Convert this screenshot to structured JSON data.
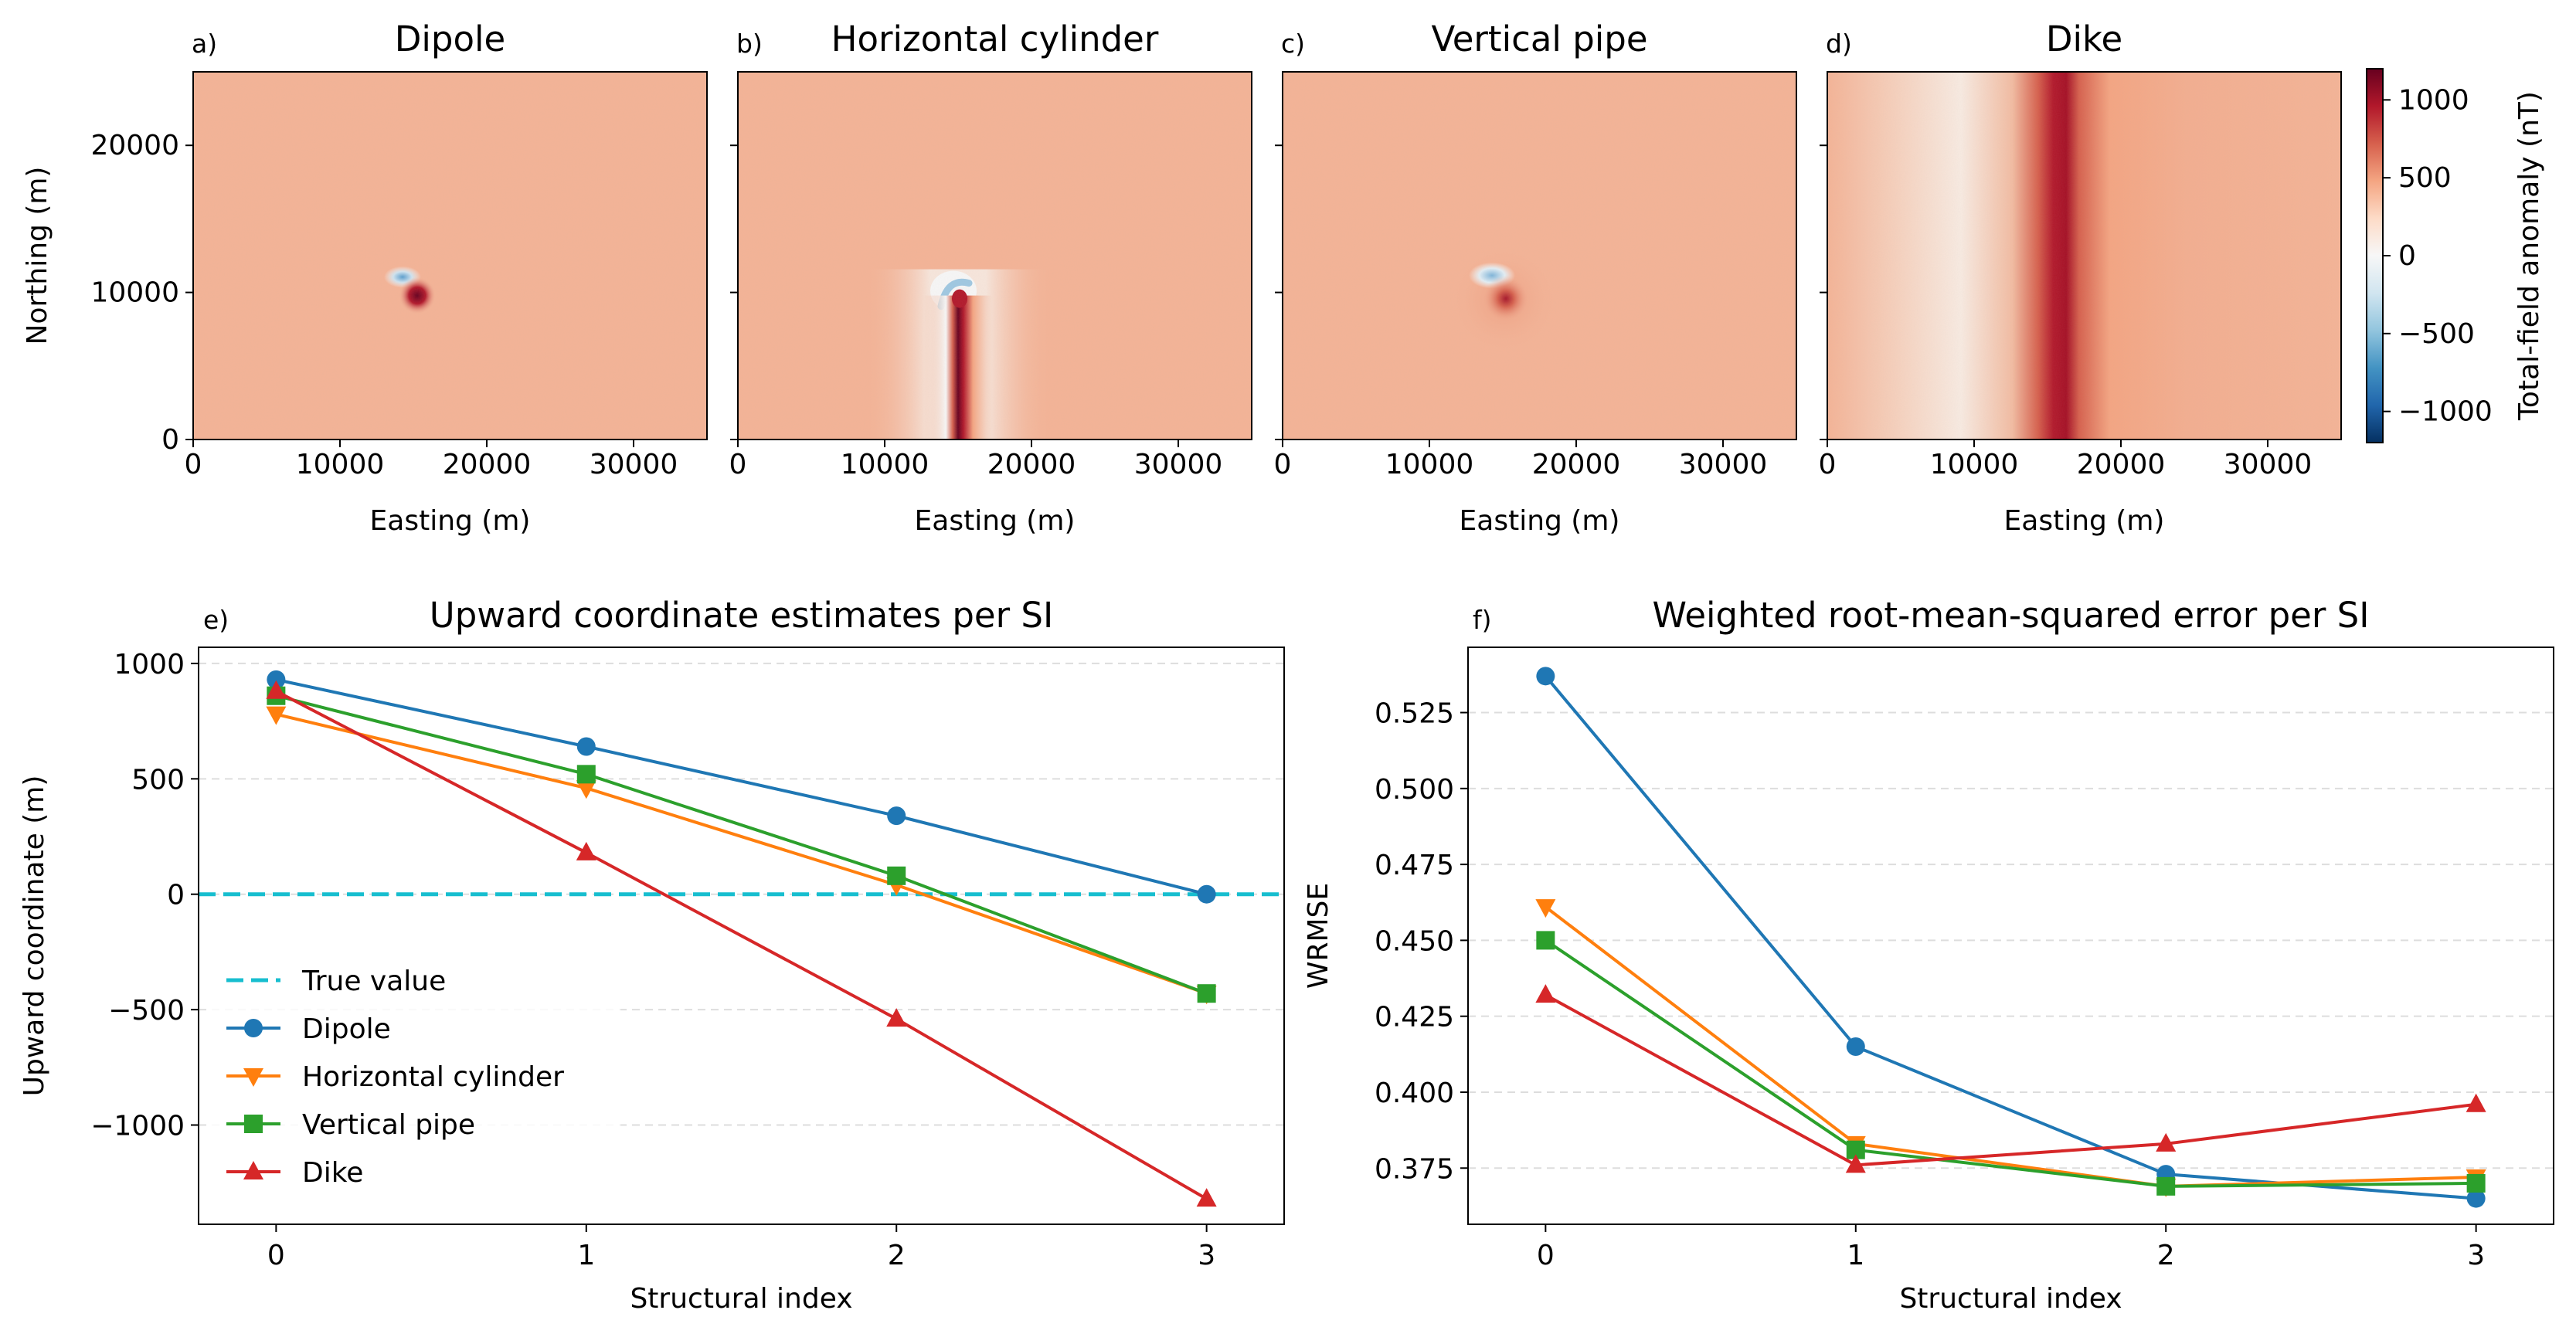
{
  "colors": {
    "dipole": "#1f77b4",
    "cylinder": "#ff7f0e",
    "pipe": "#2ca02c",
    "dike": "#d62728",
    "true_value": "#17becf",
    "grid": "#dddddd"
  },
  "chart_data": [
    {
      "type": "heatmap",
      "panel": "a)",
      "title": "Dipole",
      "xlabel": "Easting (m)",
      "ylabel": "Northing (m)",
      "xlim": [
        0,
        35000
      ],
      "ylim": [
        0,
        25000
      ],
      "xticks": [
        "0",
        "10000",
        "20000",
        "30000"
      ],
      "yticks": [
        "0",
        "10000",
        "20000"
      ],
      "background_nT": 300,
      "feature": "dipole",
      "source": {
        "easting": 15000,
        "northing": 10000
      }
    },
    {
      "type": "heatmap",
      "panel": "b)",
      "title": "Horizontal cylinder",
      "xlabel": "Easting (m)",
      "ylabel": "",
      "xlim": [
        0,
        35000
      ],
      "ylim": [
        0,
        25000
      ],
      "xticks": [
        "0",
        "10000",
        "20000",
        "30000"
      ],
      "yticks": [],
      "background_nT": 300,
      "feature": "horizontal cylinder",
      "source": {
        "easting": 15000,
        "northing_start": 0,
        "northing_end": 10000
      }
    },
    {
      "type": "heatmap",
      "panel": "c)",
      "title": "Vertical pipe",
      "xlabel": "Easting (m)",
      "ylabel": "",
      "xlim": [
        0,
        35000
      ],
      "ylim": [
        0,
        25000
      ],
      "xticks": [
        "0",
        "10000",
        "20000",
        "30000"
      ],
      "yticks": [],
      "background_nT": 300,
      "feature": "vertical pipe",
      "source": {
        "easting": 15000,
        "northing": 10000
      }
    },
    {
      "type": "heatmap",
      "panel": "d)",
      "title": "Dike",
      "xlabel": "Easting (m)",
      "ylabel": "",
      "xlim": [
        0,
        35000
      ],
      "ylim": [
        0,
        25000
      ],
      "xticks": [
        "0",
        "10000",
        "20000",
        "30000"
      ],
      "yticks": [],
      "background_nT": 300,
      "feature": "dike",
      "source": {
        "easting": 15000
      }
    },
    {
      "type": "colorbar",
      "label": "Total-field anomaly (nT)",
      "range": [
        -1200,
        1200
      ],
      "ticks": [
        -1000,
        -500,
        0,
        500,
        1000
      ],
      "tick_labels": [
        "−1000",
        "−500",
        "0",
        "500",
        "1000"
      ],
      "colormap": "RdBu_r"
    },
    {
      "type": "line",
      "panel": "e)",
      "title": "Upward coordinate estimates per SI",
      "xlabel": "Structural index",
      "ylabel": "Upward coordinate (m)",
      "x": [
        0,
        1,
        2,
        3
      ],
      "xlim": [
        -0.25,
        3.25
      ],
      "ylim": [
        -1430,
        1070
      ],
      "xticks": [
        "0",
        "1",
        "2",
        "3"
      ],
      "yticks": [
        1000,
        500,
        0,
        -500,
        -1000
      ],
      "ytick_labels": [
        "1000",
        "500",
        "0",
        "−500",
        "−1000"
      ],
      "grid": "horizontal dashed",
      "legend_position": "lower-left",
      "reference_line": {
        "name": "True value",
        "y": 0
      },
      "series": [
        {
          "name": "Dipole",
          "marker": "circle",
          "values": [
            930,
            640,
            340,
            0
          ]
        },
        {
          "name": "Horizontal cylinder",
          "marker": "triangle-down",
          "values": [
            780,
            460,
            40,
            -430
          ]
        },
        {
          "name": "Vertical pipe",
          "marker": "square",
          "values": [
            860,
            520,
            80,
            -430
          ]
        },
        {
          "name": "Dike",
          "marker": "triangle-up",
          "values": [
            880,
            180,
            -540,
            -1320
          ]
        }
      ]
    },
    {
      "type": "line",
      "panel": "f)",
      "title": "Weighted root-mean-squared error per SI",
      "xlabel": "Structural index",
      "ylabel": "WRMSE",
      "x": [
        0,
        1,
        2,
        3
      ],
      "xlim": [
        -0.25,
        3.25
      ],
      "ylim": [
        0.3565,
        0.5465
      ],
      "xticks": [
        "0",
        "1",
        "2",
        "3"
      ],
      "yticks": [
        0.375,
        0.4,
        0.425,
        0.45,
        0.475,
        0.5,
        0.525
      ],
      "ytick_labels": [
        "0.375",
        "0.400",
        "0.425",
        "0.450",
        "0.475",
        "0.500",
        "0.525"
      ],
      "grid": "horizontal dashed",
      "series": [
        {
          "name": "Dipole",
          "marker": "circle",
          "values": [
            0.537,
            0.415,
            0.373,
            0.365
          ]
        },
        {
          "name": "Horizontal cylinder",
          "marker": "triangle-down",
          "values": [
            0.461,
            0.383,
            0.369,
            0.372
          ]
        },
        {
          "name": "Vertical pipe",
          "marker": "square",
          "values": [
            0.45,
            0.381,
            0.369,
            0.37
          ]
        },
        {
          "name": "Dike",
          "marker": "triangle-up",
          "values": [
            0.432,
            0.376,
            0.383,
            0.396
          ]
        }
      ]
    }
  ]
}
